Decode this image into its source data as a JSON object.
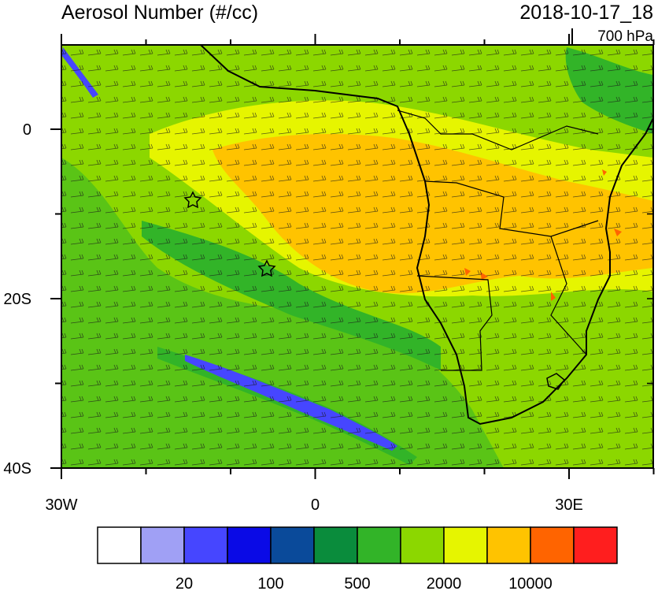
{
  "header": {
    "title": "Aerosol Number (#/cc)",
    "date": "2018-10-17_18",
    "level": "700 hPa"
  },
  "map": {
    "lat_labels": [
      "0",
      "20S",
      "40S"
    ],
    "lon_labels": [
      "30W",
      "0",
      "30E"
    ]
  },
  "colorbar": {
    "colors": [
      "#ffffff",
      "#a0a0f5",
      "#4646ff",
      "#0a0ae6",
      "#0a4a9a",
      "#0a8c3c",
      "#32b428",
      "#8cd700",
      "#e6f500",
      "#ffc300",
      "#ff6400",
      "#ff1e1e"
    ],
    "labels": [
      "20",
      "100",
      "500",
      "2000",
      "10000"
    ]
  }
}
